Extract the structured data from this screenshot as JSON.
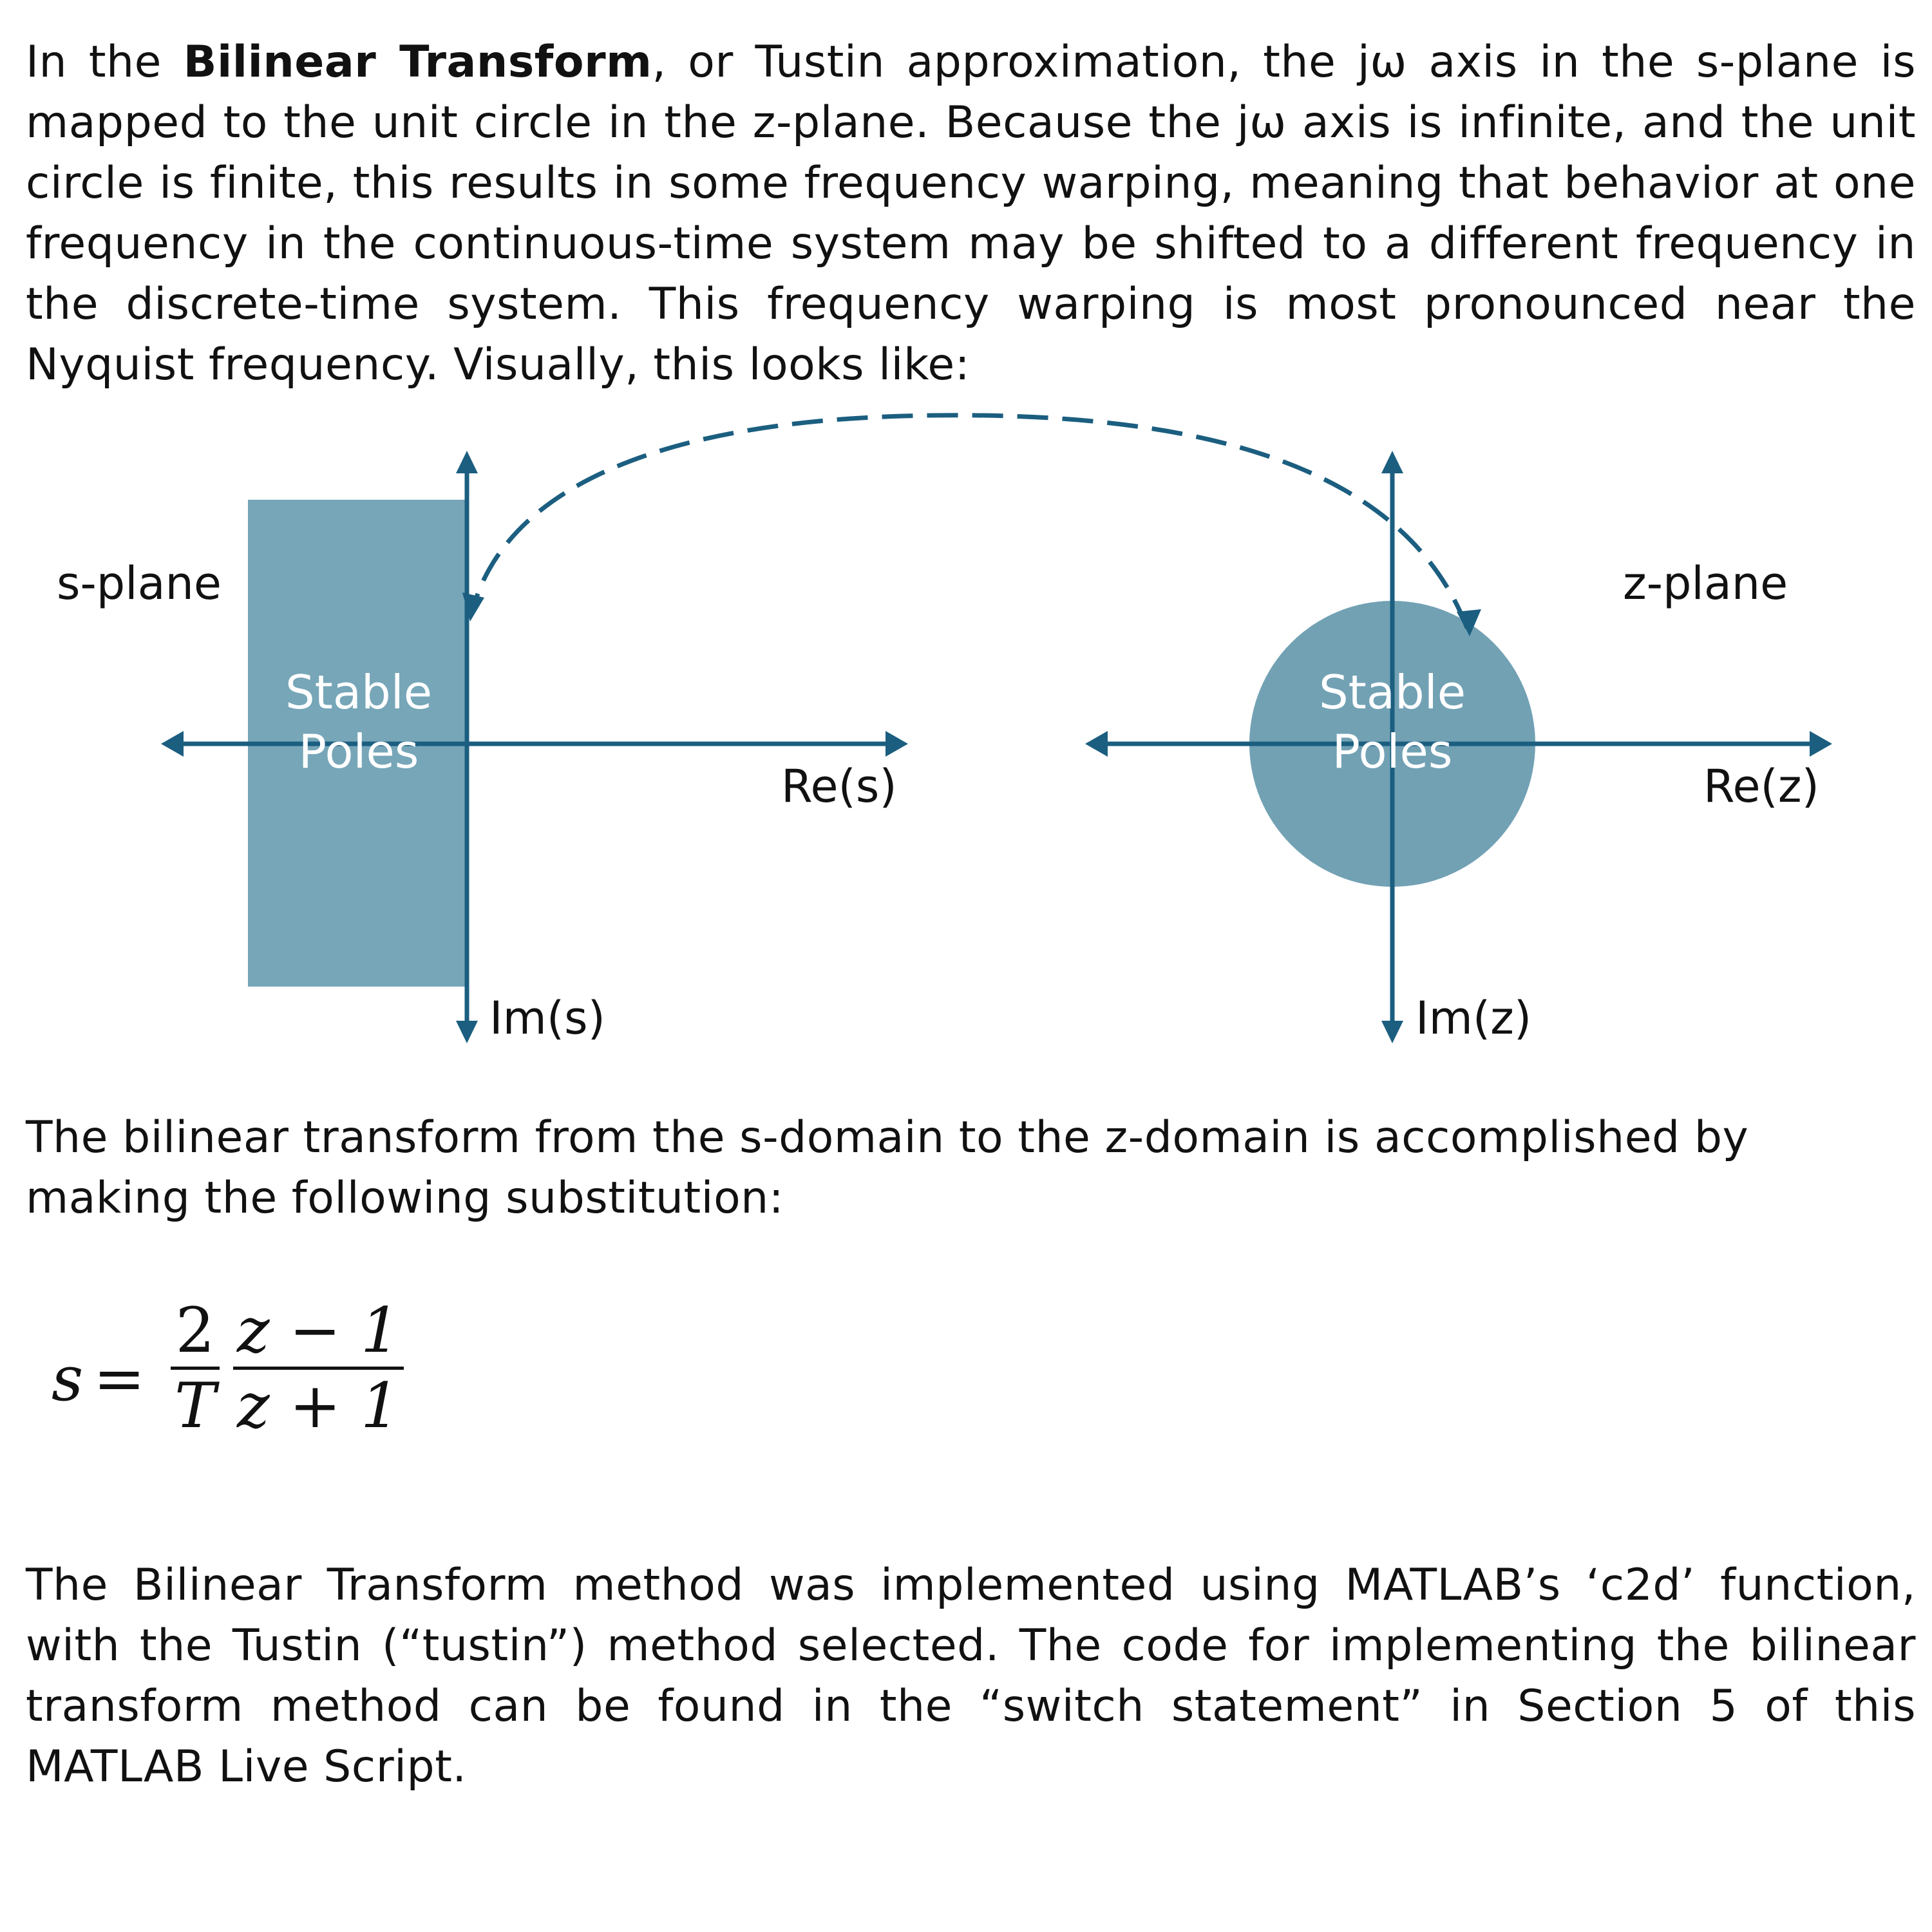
{
  "paragraph1": {
    "intro": "In the ",
    "term": "Bilinear Transform",
    "text": ", or Tustin approximation, the jω axis in the s-plane is mapped to the unit circle in the z-plane. Because the jω axis is infinite, and the unit circle is finite, this results in some frequency warping, meaning that behavior at one frequency in the continuous-time system may be shifted to a different frequency in the discrete-time system. This frequency warping is most pronounced near the Nyquist frequency. Visually, this looks like:"
  },
  "diagram": {
    "s_plane": {
      "title": "s-plane",
      "region_label_line1": "Stable",
      "region_label_line2": "Poles",
      "real_axis_label": "Re(s)",
      "imag_axis_label": "Im(s)"
    },
    "z_plane": {
      "title": "z-plane",
      "region_label_line1": "Stable",
      "region_label_line2": "Poles",
      "real_axis_label": "Re(z)",
      "imag_axis_label": "Im(z)"
    },
    "colors": {
      "axis": "#1b5e80",
      "region": "#76a6b8",
      "region_text": "#ffffff"
    }
  },
  "paragraph2": "The bilinear transform from the s-domain to the z-domain is accomplished by making the following substitution:",
  "equation": {
    "lhs": "s",
    "equals": "=",
    "frac1_num": "2",
    "frac1_den": "T",
    "frac2_num": "z − 1",
    "frac2_den": "z + 1"
  },
  "paragraph3": "The Bilinear Transform method was implemented using MATLAB’s ‘c2d’ function, with the Tustin (“tustin”) method selected. The code for implementing the bilinear transform method can be found in the “switch statement” in Section 5 of this MATLAB Live Script."
}
